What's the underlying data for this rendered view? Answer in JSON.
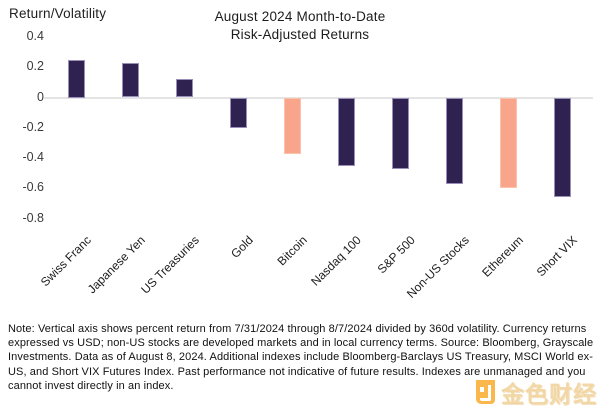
{
  "chart_data": {
    "type": "bar",
    "title": "August 2024 Month-to-Date Risk-Adjusted Returns",
    "title_lines": [
      "August 2024 Month-to-Date",
      "Risk-Adjusted Returns"
    ],
    "ylabel": "Return/Volatility",
    "categories": [
      "Swiss Franc",
      "Japanese Yen",
      "US Treasuries",
      "Gold",
      "Bitcoin",
      "Nasdaq 100",
      "S&P 500",
      "Non-US Stocks",
      "Ethereum",
      "Short VIX"
    ],
    "values": [
      0.25,
      0.23,
      0.12,
      -0.2,
      -0.37,
      -0.45,
      -0.47,
      -0.57,
      -0.6,
      -0.66
    ],
    "bar_color_keys": [
      "navy",
      "navy",
      "navy",
      "navy",
      "salmon",
      "navy",
      "navy",
      "navy",
      "salmon",
      "navy"
    ],
    "palette": {
      "navy": "#2f2250",
      "salmon": "#f9a58b"
    },
    "border_palette": {
      "navy": "#9a8fb9",
      "salmon": "#fbc3ae"
    },
    "yticks": [
      "0.4",
      "0.2",
      "0",
      "-0.2",
      "-0.4",
      "-0.6",
      "-0.8"
    ],
    "ylim": [
      -0.9,
      0.45
    ],
    "grid": "zero-line-only",
    "legend": "none",
    "zero_line_color": "#e4e4e4"
  },
  "note": {
    "text": "Note: Vertical axis shows percent return from 7/31/2024 through 8/7/2024 divided by 360d volatility. Currency returns expressed vs USD; non-US stocks are developed markets and in local currency terms. Source: Bloomberg, Grayscale Investments. Data as of August 8, 2024. Additional indexes include Bloomberg-Barclays US Treasury, MSCI World ex-US, and Short VIX Futures Index. Past performance not indicative of future results. Indexes are unmanaged and you cannot invest directly in an index."
  },
  "watermark": {
    "text": "金色财经",
    "logo_color": "#f7a21b",
    "text_color": "#e8b254"
  }
}
